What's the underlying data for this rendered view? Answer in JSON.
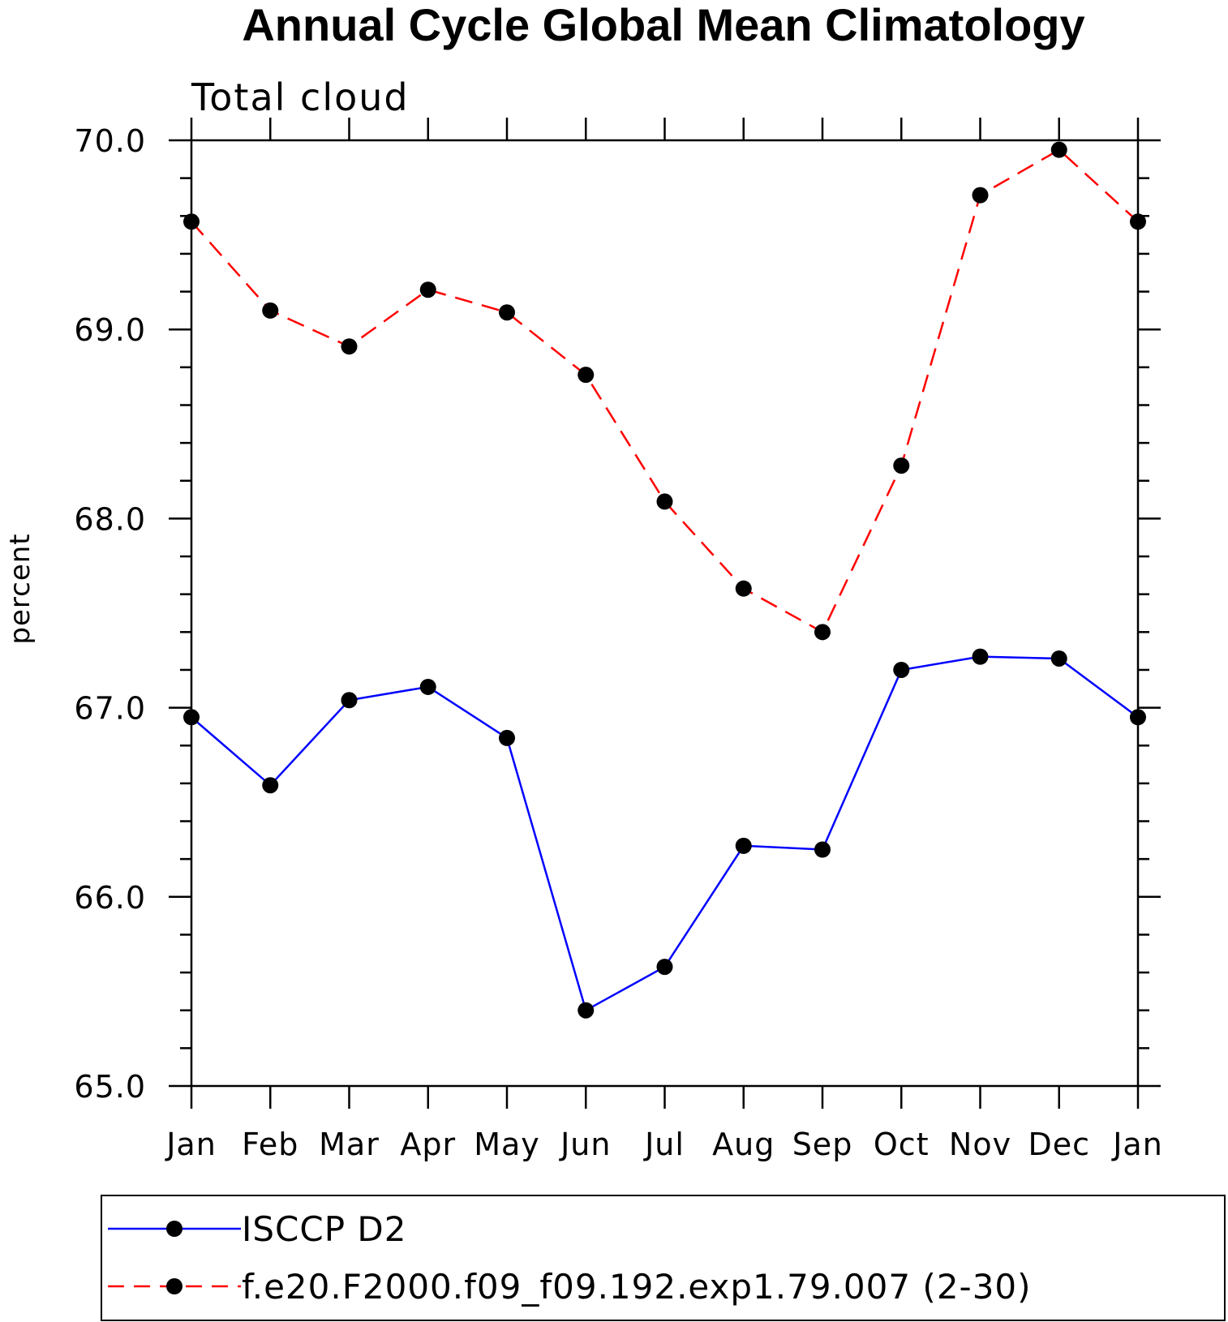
{
  "chart_data": {
    "type": "line",
    "title": "Annual Cycle Global Mean Climatology",
    "subtitle": "Total cloud",
    "ylabel": "percent",
    "xlabel": "",
    "categories": [
      "Jan",
      "Feb",
      "Mar",
      "Apr",
      "May",
      "Jun",
      "Jul",
      "Aug",
      "Sep",
      "Oct",
      "Nov",
      "Dec",
      "Jan"
    ],
    "ylim": [
      65.0,
      70.0
    ],
    "yticks": [
      "65.0",
      "66.0",
      "67.0",
      "68.0",
      "69.0",
      "70.0"
    ],
    "grid": false,
    "legend_position": "bottom",
    "series": [
      {
        "name": "ISCCP D2",
        "color": "#0000ff",
        "style": "solid",
        "marker": "filled-circle",
        "values": [
          66.95,
          66.59,
          67.04,
          67.11,
          66.84,
          65.4,
          65.63,
          66.27,
          66.25,
          67.2,
          67.27,
          67.26,
          66.95
        ]
      },
      {
        "name": "f.e20.F2000.f09_f09.192.exp1.79.007 (2-30)",
        "color": "#ff0000",
        "style": "dashed",
        "marker": "filled-circle",
        "values": [
          69.57,
          69.1,
          68.91,
          69.21,
          69.09,
          68.76,
          68.09,
          67.63,
          67.4,
          68.28,
          69.71,
          69.95,
          69.57
        ]
      }
    ]
  }
}
